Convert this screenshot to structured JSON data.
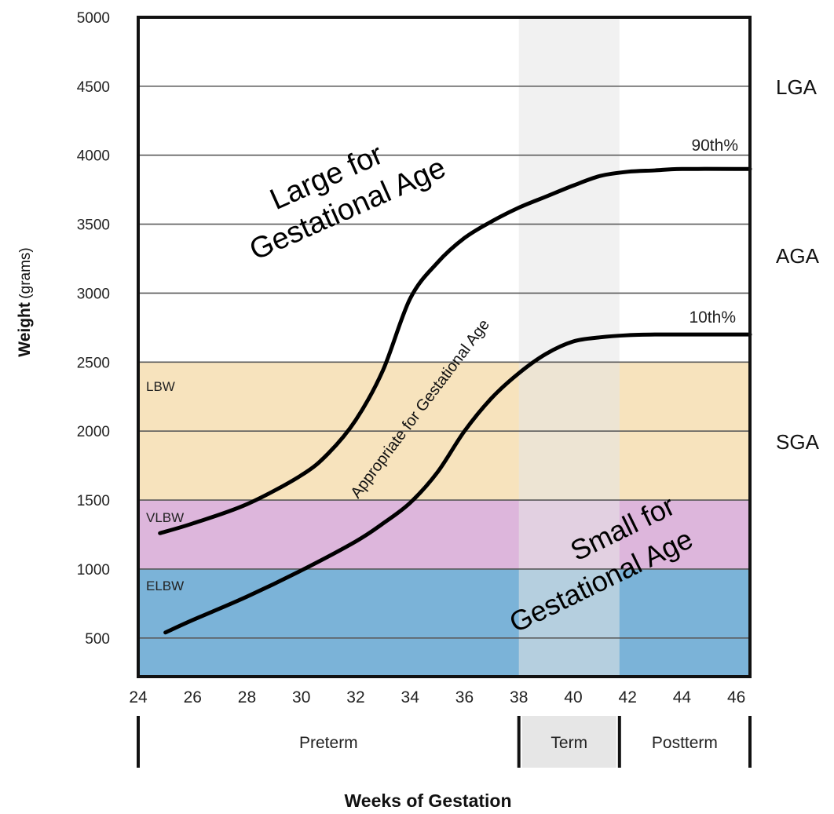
{
  "chart_data": {
    "type": "line",
    "title": "",
    "xlabel": "Weeks of Gestation",
    "ylabel_bold": "Weight",
    "ylabel_unit": "(grams)",
    "xlim": [
      24,
      46.5
    ],
    "ylim": [
      220,
      5000
    ],
    "x_ticks": [
      24,
      26,
      28,
      30,
      32,
      34,
      36,
      38,
      40,
      42,
      44,
      46
    ],
    "y_ticks": [
      500,
      1000,
      1500,
      2000,
      2500,
      3000,
      3500,
      4000,
      4500,
      5000
    ],
    "grid": "horizontal",
    "series": [
      {
        "name": "90th%",
        "color": "#000000",
        "x": [
          24.8,
          26,
          28,
          30,
          31,
          32,
          33,
          34,
          35,
          36,
          37,
          38,
          39,
          40,
          41,
          42,
          43,
          44,
          46.5
        ],
        "y": [
          1260,
          1330,
          1470,
          1680,
          1840,
          2080,
          2440,
          2960,
          3220,
          3400,
          3520,
          3620,
          3700,
          3780,
          3850,
          3880,
          3890,
          3900,
          3900
        ]
      },
      {
        "name": "10th%",
        "color": "#000000",
        "x": [
          25,
          26,
          28,
          30,
          32,
          33,
          34,
          35,
          36,
          37,
          38,
          39,
          40,
          41,
          42,
          43,
          44,
          46.5
        ],
        "y": [
          540,
          630,
          800,
          990,
          1200,
          1330,
          1480,
          1700,
          2000,
          2240,
          2420,
          2560,
          2650,
          2680,
          2695,
          2700,
          2700,
          2700
        ]
      }
    ],
    "bands": [
      {
        "label": "ELBW",
        "from": 220,
        "to": 1000,
        "color": "#7bb3d8"
      },
      {
        "label": "VLBW",
        "from": 1000,
        "to": 1500,
        "color": "#ddb6dc"
      },
      {
        "label": "LBW",
        "from": 1500,
        "to": 2500,
        "color": "#f7e3bd"
      }
    ],
    "term_shading": {
      "from": 38,
      "to": 41.7,
      "color": "#e6e6e6"
    },
    "periods": [
      {
        "label": "Preterm",
        "from": 24,
        "to": 38
      },
      {
        "label": "Term",
        "from": 38,
        "to": 41.7
      },
      {
        "label": "Postterm",
        "from": 41.7,
        "to": 46.5
      }
    ],
    "region_labels": {
      "large": [
        "Large for",
        "Gestational Age"
      ],
      "appropriate": "Appropriate for Gestational Age",
      "small": [
        "Small for",
        "Gestational Age"
      ]
    },
    "side_labels": [
      "LGA",
      "AGA",
      "SGA"
    ]
  }
}
